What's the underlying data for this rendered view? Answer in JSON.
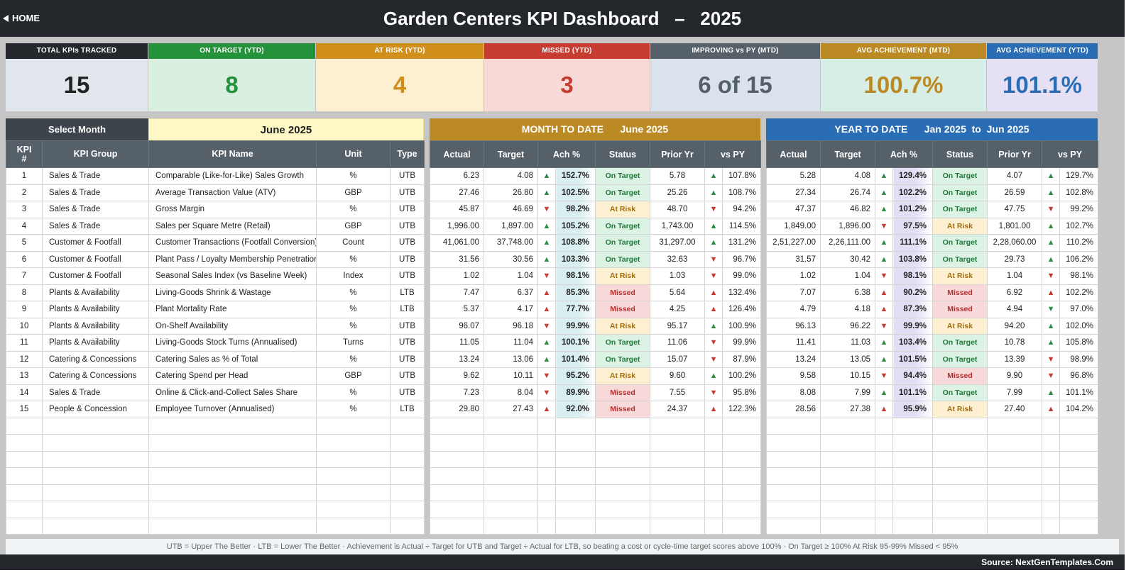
{
  "header": {
    "home_label": "HOME",
    "title": "Garden Centers KPI Dashboard   –   2025"
  },
  "kpi_cards": [
    {
      "label": "TOTAL KPIs TRACKED",
      "value": "15",
      "head": "#24282c",
      "body": "#e2e7ee",
      "text": "#222222"
    },
    {
      "label": "ON TARGET (YTD)",
      "value": "8",
      "head": "#24923a",
      "body": "#d9f0e1",
      "text": "#24923a"
    },
    {
      "label": "AT RISK (YTD)",
      "value": "4",
      "head": "#d08f1a",
      "body": "#fdf0d2",
      "text": "#d08f1a"
    },
    {
      "label": "MISSED (YTD)",
      "value": "3",
      "head": "#c63c31",
      "body": "#f7d9d8",
      "text": "#c63c31"
    },
    {
      "label": "IMPROVING vs PY (MTD)",
      "value": "6 of 15",
      "head": "#566068",
      "body": "#dae3ec",
      "text": "#566068"
    },
    {
      "label": "AVG ACHIEVEMENT (MTD)",
      "value": "100.7%",
      "head": "#bc8a24",
      "body": "#d7eee6",
      "text": "#bc8a24"
    },
    {
      "label": "AVG ACHIEVEMENT (YTD)",
      "value": "101.1%",
      "head": "#2b6db4",
      "body": "#e6e0f4",
      "text": "#2b6db4"
    }
  ],
  "selector": {
    "label": "Select Month",
    "value": "June 2025"
  },
  "mtd_header": "MONTH TO DATE      June 2025",
  "ytd_header": "YEAR TO DATE      Jan 2025  to  Jun 2025",
  "columns": {
    "left": [
      "KPI\n#",
      "KPI Group",
      "KPI Name",
      "Unit",
      "Type"
    ],
    "mtd": [
      "Actual",
      "Target",
      "Ach %",
      "Status",
      "Prior Yr",
      "vs PY"
    ],
    "ytd": [
      "Actual",
      "Target",
      "Ach %",
      "Status",
      "Prior Yr",
      "vs PY"
    ]
  },
  "colors": {
    "mtd_head": "#bc8a24",
    "ytd_head": "#2b6db4",
    "ach_mtd_bg": "#d8eef1",
    "ach_ytd_bg": "#e4def4",
    "status": {
      "On Target": {
        "bg": "#dcf2e4",
        "fg": "#1f7a38"
      },
      "At Risk": {
        "bg": "#fdf0d2",
        "fg": "#a26d0c"
      },
      "Missed": {
        "bg": "#f8d9d9",
        "fg": "#b42f2f"
      }
    }
  },
  "rows": [
    {
      "n": "1",
      "group": "Sales & Trade",
      "name": "Comparable (Like-for-Like) Sales Growth",
      "unit": "%",
      "type": "UTB",
      "mtd": {
        "actual": "6.23",
        "target": "4.08",
        "ach_dir": "up",
        "ach": "152.7%",
        "status": "On Target",
        "prior": "5.78",
        "vs_dir": "up",
        "vs": "107.8%"
      },
      "ytd": {
        "actual": "5.28",
        "target": "4.08",
        "ach_dir": "up",
        "ach": "129.4%",
        "status": "On Target",
        "prior": "4.07",
        "vs_dir": "up",
        "vs": "129.7%"
      }
    },
    {
      "n": "2",
      "group": "Sales & Trade",
      "name": "Average Transaction Value (ATV)",
      "unit": "GBP",
      "type": "UTB",
      "mtd": {
        "actual": "27.46",
        "target": "26.80",
        "ach_dir": "up",
        "ach": "102.5%",
        "status": "On Target",
        "prior": "25.26",
        "vs_dir": "up",
        "vs": "108.7%"
      },
      "ytd": {
        "actual": "27.34",
        "target": "26.74",
        "ach_dir": "up",
        "ach": "102.2%",
        "status": "On Target",
        "prior": "26.59",
        "vs_dir": "up",
        "vs": "102.8%"
      }
    },
    {
      "n": "3",
      "group": "Sales & Trade",
      "name": "Gross Margin",
      "unit": "%",
      "type": "UTB",
      "mtd": {
        "actual": "45.87",
        "target": "46.69",
        "ach_dir": "down",
        "ach": "98.2%",
        "status": "At Risk",
        "prior": "48.70",
        "vs_dir": "down",
        "vs": "94.2%"
      },
      "ytd": {
        "actual": "47.37",
        "target": "46.82",
        "ach_dir": "up",
        "ach": "101.2%",
        "status": "On Target",
        "prior": "47.75",
        "vs_dir": "down",
        "vs": "99.2%"
      }
    },
    {
      "n": "4",
      "group": "Sales & Trade",
      "name": "Sales per Square Metre (Retail)",
      "unit": "GBP",
      "type": "UTB",
      "mtd": {
        "actual": "1,996.00",
        "target": "1,897.00",
        "ach_dir": "up",
        "ach": "105.2%",
        "status": "On Target",
        "prior": "1,743.00",
        "vs_dir": "up",
        "vs": "114.5%"
      },
      "ytd": {
        "actual": "1,849.00",
        "target": "1,896.00",
        "ach_dir": "down",
        "ach": "97.5%",
        "status": "At Risk",
        "prior": "1,801.00",
        "vs_dir": "up",
        "vs": "102.7%"
      }
    },
    {
      "n": "5",
      "group": "Customer & Footfall",
      "name": "Customer Transactions (Footfall Conversion)",
      "unit": "Count",
      "type": "UTB",
      "mtd": {
        "actual": "41,061.00",
        "target": "37,748.00",
        "ach_dir": "up",
        "ach": "108.8%",
        "status": "On Target",
        "prior": "31,297.00",
        "vs_dir": "up",
        "vs": "131.2%"
      },
      "ytd": {
        "actual": "2,51,227.00",
        "target": "2,26,111.00",
        "ach_dir": "up",
        "ach": "111.1%",
        "status": "On Target",
        "prior": "2,28,060.00",
        "vs_dir": "up",
        "vs": "110.2%"
      }
    },
    {
      "n": "6",
      "group": "Customer & Footfall",
      "name": "Plant Pass / Loyalty Membership Penetration",
      "unit": "%",
      "type": "UTB",
      "mtd": {
        "actual": "31.56",
        "target": "30.56",
        "ach_dir": "up",
        "ach": "103.3%",
        "status": "On Target",
        "prior": "32.63",
        "vs_dir": "down",
        "vs": "96.7%"
      },
      "ytd": {
        "actual": "31.57",
        "target": "30.42",
        "ach_dir": "up",
        "ach": "103.8%",
        "status": "On Target",
        "prior": "29.73",
        "vs_dir": "up",
        "vs": "106.2%"
      }
    },
    {
      "n": "7",
      "group": "Customer & Footfall",
      "name": "Seasonal Sales Index (vs Baseline Week)",
      "unit": "Index",
      "type": "UTB",
      "mtd": {
        "actual": "1.02",
        "target": "1.04",
        "ach_dir": "down",
        "ach": "98.1%",
        "status": "At Risk",
        "prior": "1.03",
        "vs_dir": "down",
        "vs": "99.0%"
      },
      "ytd": {
        "actual": "1.02",
        "target": "1.04",
        "ach_dir": "down",
        "ach": "98.1%",
        "status": "At Risk",
        "prior": "1.04",
        "vs_dir": "down",
        "vs": "98.1%"
      }
    },
    {
      "n": "8",
      "group": "Plants & Availability",
      "name": "Living-Goods Shrink & Wastage",
      "unit": "%",
      "type": "LTB",
      "mtd": {
        "actual": "7.47",
        "target": "6.37",
        "ach_dir": "up-red",
        "ach": "85.3%",
        "status": "Missed",
        "prior": "5.64",
        "vs_dir": "up-red",
        "vs": "132.4%"
      },
      "ytd": {
        "actual": "7.07",
        "target": "6.38",
        "ach_dir": "up-red",
        "ach": "90.2%",
        "status": "Missed",
        "prior": "6.92",
        "vs_dir": "up-red",
        "vs": "102.2%"
      }
    },
    {
      "n": "9",
      "group": "Plants & Availability",
      "name": "Plant Mortality Rate",
      "unit": "%",
      "type": "LTB",
      "mtd": {
        "actual": "5.37",
        "target": "4.17",
        "ach_dir": "up-red",
        "ach": "77.7%",
        "status": "Missed",
        "prior": "4.25",
        "vs_dir": "up-red",
        "vs": "126.4%"
      },
      "ytd": {
        "actual": "4.79",
        "target": "4.18",
        "ach_dir": "up-red",
        "ach": "87.3%",
        "status": "Missed",
        "prior": "4.94",
        "vs_dir": "down-green",
        "vs": "97.0%"
      }
    },
    {
      "n": "10",
      "group": "Plants & Availability",
      "name": "On-Shelf Availability",
      "unit": "%",
      "type": "UTB",
      "mtd": {
        "actual": "96.07",
        "target": "96.18",
        "ach_dir": "down",
        "ach": "99.9%",
        "status": "At Risk",
        "prior": "95.17",
        "vs_dir": "up",
        "vs": "100.9%"
      },
      "ytd": {
        "actual": "96.13",
        "target": "96.22",
        "ach_dir": "down",
        "ach": "99.9%",
        "status": "At Risk",
        "prior": "94.20",
        "vs_dir": "up",
        "vs": "102.0%"
      }
    },
    {
      "n": "11",
      "group": "Plants & Availability",
      "name": "Living-Goods Stock Turns (Annualised)",
      "unit": "Turns",
      "type": "UTB",
      "mtd": {
        "actual": "11.05",
        "target": "11.04",
        "ach_dir": "up",
        "ach": "100.1%",
        "status": "On Target",
        "prior": "11.06",
        "vs_dir": "down",
        "vs": "99.9%"
      },
      "ytd": {
        "actual": "11.41",
        "target": "11.03",
        "ach_dir": "up",
        "ach": "103.4%",
        "status": "On Target",
        "prior": "10.78",
        "vs_dir": "up",
        "vs": "105.8%"
      }
    },
    {
      "n": "12",
      "group": "Catering & Concessions",
      "name": "Catering Sales as % of Total",
      "unit": "%",
      "type": "UTB",
      "mtd": {
        "actual": "13.24",
        "target": "13.06",
        "ach_dir": "up",
        "ach": "101.4%",
        "status": "On Target",
        "prior": "15.07",
        "vs_dir": "down",
        "vs": "87.9%"
      },
      "ytd": {
        "actual": "13.24",
        "target": "13.05",
        "ach_dir": "up",
        "ach": "101.5%",
        "status": "On Target",
        "prior": "13.39",
        "vs_dir": "down",
        "vs": "98.9%"
      }
    },
    {
      "n": "13",
      "group": "Catering & Concessions",
      "name": "Catering Spend per Head",
      "unit": "GBP",
      "type": "UTB",
      "mtd": {
        "actual": "9.62",
        "target": "10.11",
        "ach_dir": "down",
        "ach": "95.2%",
        "status": "At Risk",
        "prior": "9.60",
        "vs_dir": "up",
        "vs": "100.2%"
      },
      "ytd": {
        "actual": "9.58",
        "target": "10.15",
        "ach_dir": "down",
        "ach": "94.4%",
        "status": "Missed",
        "prior": "9.90",
        "vs_dir": "down",
        "vs": "96.8%"
      }
    },
    {
      "n": "14",
      "group": "Sales & Trade",
      "name": "Online & Click-and-Collect Sales Share",
      "unit": "%",
      "type": "UTB",
      "mtd": {
        "actual": "7.23",
        "target": "8.04",
        "ach_dir": "down",
        "ach": "89.9%",
        "status": "Missed",
        "prior": "7.55",
        "vs_dir": "down",
        "vs": "95.8%"
      },
      "ytd": {
        "actual": "8.08",
        "target": "7.99",
        "ach_dir": "up",
        "ach": "101.1%",
        "status": "On Target",
        "prior": "7.99",
        "vs_dir": "up",
        "vs": "101.1%"
      }
    },
    {
      "n": "15",
      "group": "People & Concession",
      "name": "Employee Turnover (Annualised)",
      "unit": "%",
      "type": "LTB",
      "mtd": {
        "actual": "29.80",
        "target": "27.43",
        "ach_dir": "up-red",
        "ach": "92.0%",
        "status": "Missed",
        "prior": "24.37",
        "vs_dir": "up-red",
        "vs": "122.3%"
      },
      "ytd": {
        "actual": "28.56",
        "target": "27.38",
        "ach_dir": "up-red",
        "ach": "95.9%",
        "status": "At Risk",
        "prior": "27.40",
        "vs_dir": "up-red",
        "vs": "104.2%"
      }
    }
  ],
  "empty_rows": 7,
  "footnote": "UTB = Upper The Better   ·   LTB = Lower The Better   ·   Achievement is Actual ÷ Target for UTB and Target ÷ Actual for LTB, so beating a cost or cycle-time target scores above 100%   ·   On Target ≥ 100%     At Risk 95-99%     Missed < 95%",
  "source": "Source: NextGenTemplates.Com"
}
